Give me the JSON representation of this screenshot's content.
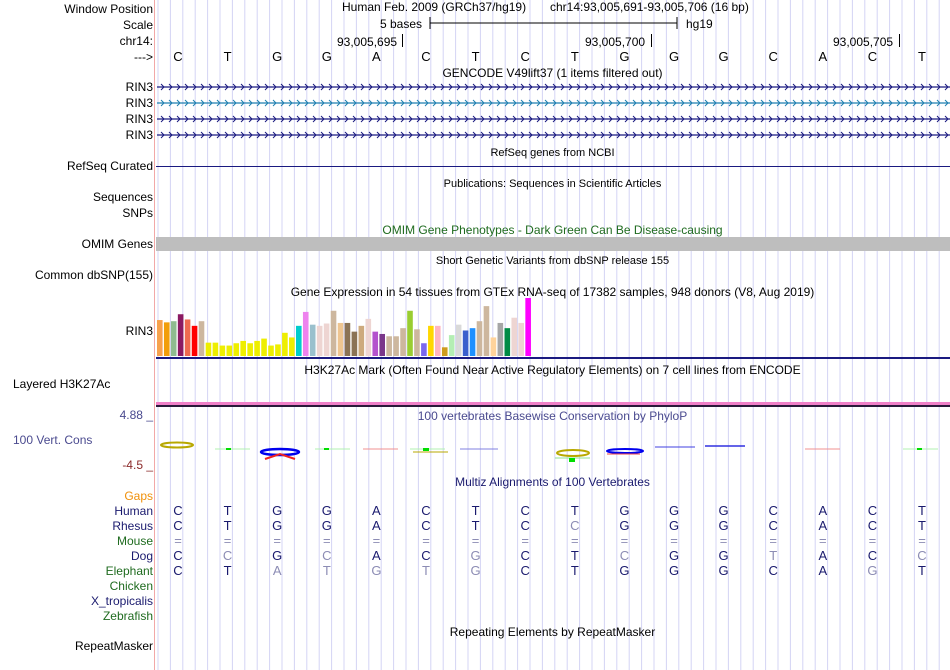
{
  "header": {
    "window_position_label": "Window Position",
    "scale_label": "Scale",
    "chrom_label": "chr14:",
    "strand_label": "--->",
    "assembly_title": "Human Feb. 2009 (GRCh37/hg19)",
    "position": "chr14:93,005,691-93,005,706 (16 bp)",
    "scale_text": "5 bases",
    "scale_db": "hg19",
    "ticks": [
      "93,005,695",
      "93,005,700",
      "93,005,705"
    ]
  },
  "sequence": [
    "C",
    "T",
    "G",
    "G",
    "A",
    "C",
    "T",
    "C",
    "T",
    "G",
    "G",
    "G",
    "C",
    "A",
    "C",
    "T"
  ],
  "gencode": {
    "title": "GENCODE V49lift37 (1 items filtered out)",
    "items": [
      {
        "label": "RIN3",
        "color": "#1a1a80"
      },
      {
        "label": "RIN3",
        "color": "#1f7fb0"
      },
      {
        "label": "RIN3",
        "color": "#1a1a80"
      },
      {
        "label": "RIN3",
        "color": "#1a1a80"
      }
    ]
  },
  "refseq": {
    "label": "RefSeq Curated",
    "title": "RefSeq genes from NCBI",
    "color": "#1a1a80"
  },
  "publications": {
    "label1": "Sequences",
    "label2": "SNPs",
    "title": "Publications: Sequences in Scientific Articles"
  },
  "omim": {
    "label": "OMIM Genes",
    "title": "OMIM Gene Phenotypes - Dark Green Can Be Disease-causing",
    "color": "#1f6b1f",
    "bar_color": "#bebebe"
  },
  "dbsnp": {
    "label": "Common dbSNP(155)",
    "title": "Short Genetic Variants from dbSNP release 155"
  },
  "gtex": {
    "label": "RIN3",
    "title": "Gene Expression in 54 tissues from GTEx RNA-seq of 17382 samples, 948 donors (V8, Aug 2019)",
    "bars": [
      {
        "v": 0.62,
        "c": "#f7a14d"
      },
      {
        "v": 0.58,
        "c": "#f29e0a"
      },
      {
        "v": 0.6,
        "c": "#8fbc8f"
      },
      {
        "v": 0.72,
        "c": "#8b1a62"
      },
      {
        "v": 0.63,
        "c": "#ee6a50"
      },
      {
        "v": 0.52,
        "c": "#ff0000"
      },
      {
        "v": 0.6,
        "c": "#cdb79e"
      },
      {
        "v": 0.23,
        "c": "#eeee00"
      },
      {
        "v": 0.23,
        "c": "#eeee00"
      },
      {
        "v": 0.18,
        "c": "#eeee00"
      },
      {
        "v": 0.18,
        "c": "#eeee00"
      },
      {
        "v": 0.22,
        "c": "#eeee00"
      },
      {
        "v": 0.26,
        "c": "#eeee00"
      },
      {
        "v": 0.22,
        "c": "#eeee00"
      },
      {
        "v": 0.26,
        "c": "#eeee00"
      },
      {
        "v": 0.3,
        "c": "#eeee00"
      },
      {
        "v": 0.18,
        "c": "#eeee00"
      },
      {
        "v": 0.2,
        "c": "#eeee00"
      },
      {
        "v": 0.4,
        "c": "#eeee00"
      },
      {
        "v": 0.32,
        "c": "#eeee00"
      },
      {
        "v": 0.52,
        "c": "#00cdcd"
      },
      {
        "v": 0.76,
        "c": "#ee82ee"
      },
      {
        "v": 0.54,
        "c": "#9ac0cd"
      },
      {
        "v": 0.52,
        "c": "#eed5d2"
      },
      {
        "v": 0.56,
        "c": "#eed5d2"
      },
      {
        "v": 0.78,
        "c": "#cdb79e"
      },
      {
        "v": 0.57,
        "c": "#eec591"
      },
      {
        "v": 0.57,
        "c": "#8b7355"
      },
      {
        "v": 0.42,
        "c": "#8b7355"
      },
      {
        "v": 0.52,
        "c": "#cdaa7d"
      },
      {
        "v": 0.64,
        "c": "#eed5d2"
      },
      {
        "v": 0.42,
        "c": "#b452cd"
      },
      {
        "v": 0.38,
        "c": "#7a378b"
      },
      {
        "v": 0.34,
        "c": "#cdb79e"
      },
      {
        "v": 0.34,
        "c": "#cdb79e"
      },
      {
        "v": 0.48,
        "c": "#cdb79e"
      },
      {
        "v": 0.78,
        "c": "#9acd32"
      },
      {
        "v": 0.46,
        "c": "#cdb79e"
      },
      {
        "v": 0.22,
        "c": "#7b68ee"
      },
      {
        "v": 0.52,
        "c": "#ffd700"
      },
      {
        "v": 0.52,
        "c": "#ffb6c1"
      },
      {
        "v": 0.15,
        "c": "#cd9b1d"
      },
      {
        "v": 0.36,
        "c": "#b4eeb4"
      },
      {
        "v": 0.54,
        "c": "#d9d9d9"
      },
      {
        "v": 0.44,
        "c": "#3a5fcd"
      },
      {
        "v": 0.48,
        "c": "#1e90ff"
      },
      {
        "v": 0.6,
        "c": "#cdb79e"
      },
      {
        "v": 0.86,
        "c": "#cdb79e"
      },
      {
        "v": 0.32,
        "c": "#ffd39b"
      },
      {
        "v": 0.57,
        "c": "#a6a6a6"
      },
      {
        "v": 0.48,
        "c": "#008b45"
      },
      {
        "v": 0.66,
        "c": "#eed5d2"
      },
      {
        "v": 0.57,
        "c": "#eed5d2"
      },
      {
        "v": 1.0,
        "c": "#ff00ff"
      }
    ],
    "baseline_color": "#1a1a80"
  },
  "h3k27ac": {
    "label": "Layered H3K27Ac",
    "title": "H3K27Ac Mark (Often Found Near Active Regulatory Elements) on 7 cell lines from ENCODE"
  },
  "phylop": {
    "label": "100 Vert. Cons",
    "title": "100 vertebrates Basewise Conservation by PhyloP",
    "max_label": "4.88 _",
    "min_label": "-4.5 _",
    "range": [
      -4.5,
      4.88
    ]
  },
  "multiz": {
    "title": "Multiz Alignments of 100 Vertebrates",
    "gaps_label": "Gaps",
    "species": [
      {
        "name": "Human",
        "color": "#1a1a6e",
        "bases": [
          "C",
          "T",
          "G",
          "G",
          "A",
          "C",
          "T",
          "C",
          "T",
          "G",
          "G",
          "G",
          "C",
          "A",
          "C",
          "T"
        ],
        "faint": []
      },
      {
        "name": "Rhesus",
        "color": "#1a1a6e",
        "bases": [
          "C",
          "T",
          "G",
          "G",
          "A",
          "C",
          "T",
          "C",
          "C",
          "G",
          "G",
          "G",
          "C",
          "A",
          "C",
          "T"
        ],
        "faint": [
          8
        ]
      },
      {
        "name": "Mouse",
        "color": "#1f6b1f",
        "bases": [
          "=",
          "=",
          "=",
          "=",
          "=",
          "=",
          "=",
          "=",
          "=",
          "=",
          "=",
          "=",
          "=",
          "=",
          "=",
          "="
        ],
        "faint": [
          0,
          1,
          2,
          3,
          4,
          5,
          6,
          7,
          8,
          9,
          10,
          11,
          12,
          13,
          14,
          15
        ]
      },
      {
        "name": "Dog",
        "color": "#1a1a6e",
        "bases": [
          "C",
          "C",
          "G",
          "C",
          "A",
          "C",
          "G",
          "C",
          "T",
          "C",
          "G",
          "G",
          "T",
          "A",
          "C",
          "C"
        ],
        "faint": [
          1,
          3,
          6,
          9,
          12,
          15
        ]
      },
      {
        "name": "Elephant",
        "color": "#1f6b1f",
        "bases": [
          "C",
          "T",
          "A",
          "T",
          "G",
          "T",
          "G",
          "C",
          "T",
          "G",
          "G",
          "G",
          "C",
          "A",
          "G",
          "T"
        ],
        "faint": [
          2,
          3,
          4,
          5,
          6,
          14
        ]
      },
      {
        "name": "Chicken",
        "color": "#1f6b1f",
        "bases": [],
        "faint": []
      },
      {
        "name": "X_tropicalis",
        "color": "#1a1a6e",
        "bases": [],
        "faint": []
      },
      {
        "name": "Zebrafish",
        "color": "#1f6b1f",
        "bases": [],
        "faint": []
      }
    ]
  },
  "repeatmasker": {
    "label": "RepeatMasker",
    "title": "Repeating Elements by RepeatMasker"
  }
}
